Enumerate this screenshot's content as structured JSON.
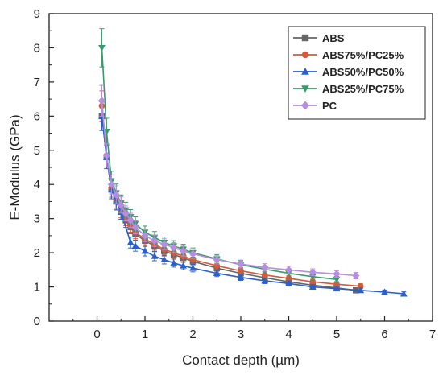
{
  "chart_data": {
    "type": "line",
    "title": "",
    "xlabel": "Contact depth (µm)",
    "ylabel": "E-Modulus (GPa)",
    "xlim": [
      -1,
      7
    ],
    "ylim": [
      0,
      9
    ],
    "xticks": [
      "0",
      "1",
      "2",
      "3",
      "4",
      "5",
      "6",
      "7"
    ],
    "yticks": [
      "0",
      "1",
      "2",
      "3",
      "4",
      "5",
      "6",
      "7",
      "8",
      "9"
    ],
    "grid": false,
    "legend_position": "top-right",
    "series": [
      {
        "name": "ABS",
        "color": "#666666",
        "marker": "square",
        "x": [
          0.1,
          0.2,
          0.3,
          0.4,
          0.5,
          0.6,
          0.7,
          0.8,
          1.0,
          1.2,
          1.4,
          1.6,
          1.8,
          2.0,
          2.5,
          3.0,
          3.5,
          4.0,
          4.5,
          5.0,
          5.4
        ],
        "y": [
          6.0,
          4.8,
          3.85,
          3.5,
          3.2,
          2.95,
          2.75,
          2.55,
          2.35,
          2.2,
          2.05,
          1.95,
          1.85,
          1.75,
          1.55,
          1.4,
          1.27,
          1.15,
          1.05,
          0.97,
          0.9
        ]
      },
      {
        "name": "ABS75%/PC25%",
        "color": "#d55a3a",
        "marker": "circle",
        "x": [
          0.1,
          0.2,
          0.3,
          0.4,
          0.5,
          0.6,
          0.7,
          0.8,
          1.0,
          1.2,
          1.4,
          1.6,
          1.8,
          2.0,
          2.5,
          3.0,
          3.5,
          4.0,
          4.5,
          5.0,
          5.5
        ],
        "y": [
          6.3,
          4.85,
          3.9,
          3.55,
          3.25,
          3.0,
          2.8,
          2.6,
          2.4,
          2.25,
          2.1,
          2.0,
          1.9,
          1.8,
          1.62,
          1.47,
          1.35,
          1.25,
          1.15,
          1.08,
          1.02
        ]
      },
      {
        "name": "ABS50%/PC50%",
        "color": "#2a5fcc",
        "marker": "triangle-up",
        "x": [
          0.1,
          0.2,
          0.3,
          0.4,
          0.5,
          0.7,
          0.8,
          1.0,
          1.2,
          1.4,
          1.6,
          1.8,
          2.0,
          2.5,
          3.0,
          3.5,
          4.0,
          4.5,
          5.0,
          5.5,
          6.0,
          6.4
        ],
        "y": [
          6.0,
          4.8,
          3.85,
          3.5,
          3.2,
          2.3,
          2.2,
          2.05,
          1.9,
          1.8,
          1.7,
          1.62,
          1.55,
          1.4,
          1.28,
          1.18,
          1.1,
          1.0,
          0.95,
          0.9,
          0.85,
          0.8
        ]
      },
      {
        "name": "ABS25%/PC75%",
        "color": "#3a9a6a",
        "marker": "triangle-down",
        "x": [
          0.1,
          0.2,
          0.3,
          0.4,
          0.5,
          0.6,
          0.7,
          0.8,
          1.0,
          1.2,
          1.4,
          1.6,
          1.8,
          2.0,
          2.5,
          3.0,
          3.5,
          4.0,
          4.5,
          5.0
        ],
        "y": [
          8.0,
          5.55,
          4.1,
          3.75,
          3.45,
          3.25,
          3.05,
          2.85,
          2.6,
          2.45,
          2.3,
          2.2,
          2.1,
          2.0,
          1.82,
          1.65,
          1.52,
          1.4,
          1.3,
          1.22
        ]
      },
      {
        "name": "PC",
        "color": "#b58ee0",
        "marker": "diamond",
        "x": [
          0.1,
          0.2,
          0.3,
          0.4,
          0.5,
          0.6,
          0.7,
          0.8,
          1.0,
          1.2,
          1.4,
          1.6,
          1.8,
          2.0,
          2.5,
          3.0,
          3.5,
          4.0,
          4.5,
          5.0,
          5.4
        ],
        "y": [
          6.45,
          4.85,
          4.0,
          3.7,
          3.4,
          3.15,
          2.95,
          2.75,
          2.5,
          2.35,
          2.25,
          2.15,
          2.05,
          1.97,
          1.8,
          1.67,
          1.57,
          1.5,
          1.43,
          1.38,
          1.33
        ]
      }
    ]
  }
}
